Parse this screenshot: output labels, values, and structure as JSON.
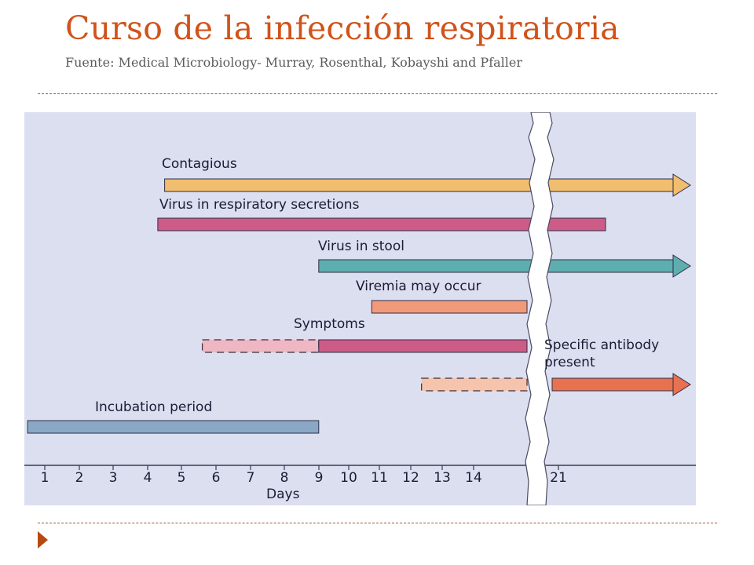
{
  "slide": {
    "title": "Curso de la infección respiratoria",
    "source": "Fuente: Medical Microbiology- Murray, Rosenthal, Kobayshi and Pfaller"
  },
  "colors": {
    "title": "#d0531a",
    "chart_background": "#dcdff0",
    "contagious": "#f1bd6e",
    "virus_secretions": "#cc5c86",
    "virus_stool": "#5eaeb0",
    "viremia": "#f19a7a",
    "symptoms": "#cc5c86",
    "symptoms_dashed": "#efb6c4",
    "antibody": "#e8724f",
    "antibody_dashed": "#f6c4ac",
    "incubation": "#8aa8c6"
  },
  "chart_data": {
    "type": "timeline",
    "xlabel": "Days",
    "x_ticks": [
      "1",
      "2",
      "3",
      "4",
      "5",
      "6",
      "7",
      "8",
      "9",
      "10",
      "11",
      "12",
      "13",
      "14",
      "21"
    ],
    "axis_break": "between 14 and 21",
    "bars": [
      {
        "label": "Contagious",
        "start": 4.5,
        "end": "beyond 21",
        "arrow": true
      },
      {
        "label": "Virus in respiratory secretions",
        "start": 4.3,
        "end": 22.5,
        "arrow": false
      },
      {
        "label": "Virus in stool",
        "start": 9.0,
        "end": "beyond 21",
        "arrow": true
      },
      {
        "label": "Viremia may occur",
        "start": 10.7,
        "end": "axis break",
        "arrow": false
      },
      {
        "label": "Symptoms",
        "dashed_start": 5.6,
        "start": 9.0,
        "end": "axis break",
        "arrow": false
      },
      {
        "label": "Specific antibody present",
        "dashed_start": 12.3,
        "start": "axis break",
        "end": "beyond 21",
        "arrow": true
      },
      {
        "label": "Incubation period",
        "start": 0.5,
        "end": 9.0,
        "arrow": false
      }
    ]
  }
}
